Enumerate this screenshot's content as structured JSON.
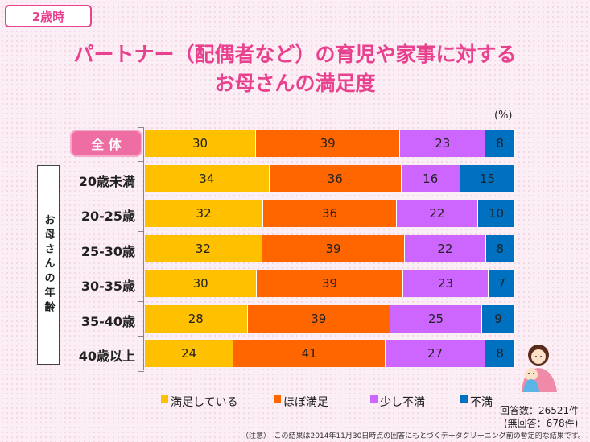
{
  "badge": "2歳時",
  "title_line1": "パートナー（配偶者など）の育児や家事に対する",
  "title_line2": "お母さんの満足度",
  "unit": "(%)",
  "row_group_label": "お母さんの年齢",
  "colors": {
    "accent": "#e8418e",
    "satisfied": "#ffc000",
    "mostly_satisfied": "#ff6600",
    "slightly_dissatisfied": "#cc66ff",
    "dissatisfied": "#0070c0"
  },
  "chart_data": {
    "type": "bar",
    "orientation": "horizontal",
    "stacked": true,
    "percent": true,
    "categories": [
      "全 体",
      "20歳未満",
      "20-25歳",
      "25-30歳",
      "30-35歳",
      "35-40歳",
      "40歳以上"
    ],
    "series": [
      {
        "name": "満足している",
        "values": [
          30,
          34,
          32,
          32,
          30,
          28,
          24
        ]
      },
      {
        "name": "ほぼ満足",
        "values": [
          39,
          36,
          36,
          39,
          39,
          39,
          41
        ]
      },
      {
        "name": "少し不満",
        "values": [
          23,
          16,
          22,
          22,
          23,
          25,
          27
        ]
      },
      {
        "name": "不満",
        "values": [
          8,
          15,
          10,
          8,
          7,
          9,
          8
        ]
      }
    ],
    "legend_position": "bottom"
  },
  "footer": {
    "count1": "回答数：26521件",
    "count2": "(無回答：678件)",
    "note": "（注意）　この結果は2014年11月30日時点の回答にもとづくデータクリーニング前の暫定的な結果です。"
  }
}
